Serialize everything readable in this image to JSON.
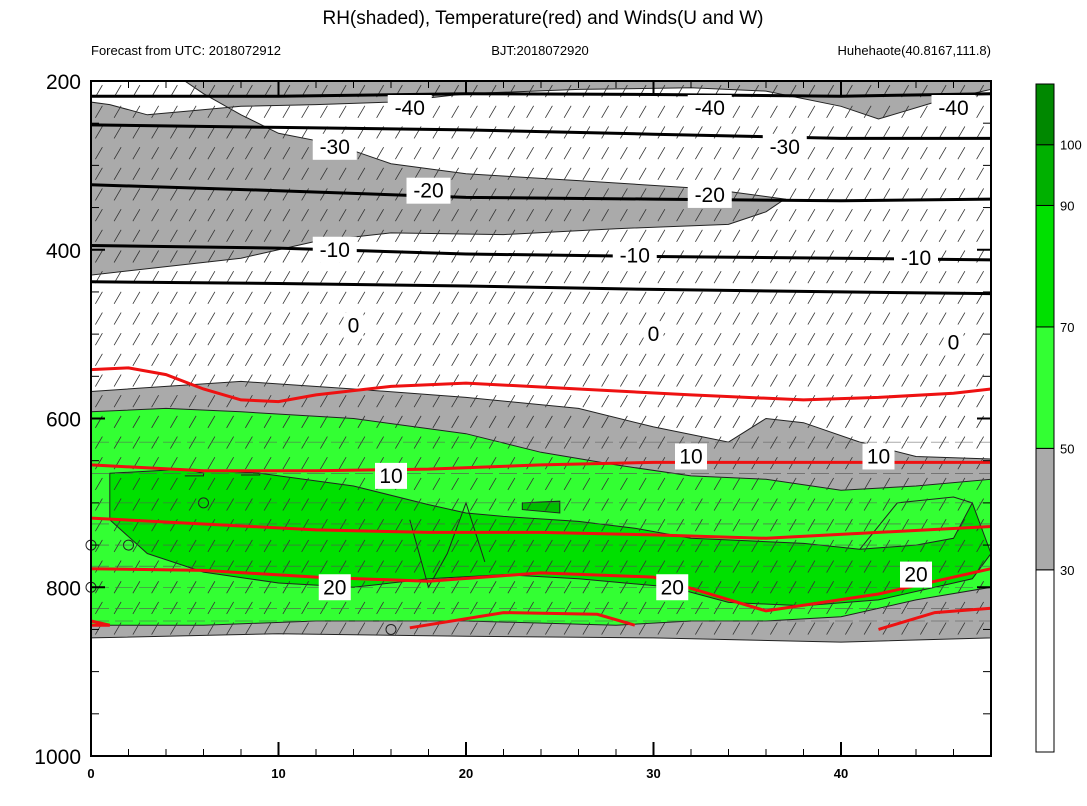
{
  "chart_data": {
    "type": "heatmap",
    "title": "RH(shaded), Temperature(red) and Winds(U and W)",
    "subtitle_left": "Forecast from UTC: 2018072912",
    "subtitle_center": "BJT:2018072920",
    "subtitle_right": "Huhehaote(40.8167,111.8)",
    "xlabel": "",
    "ylabel": "",
    "xlim": [
      0,
      48
    ],
    "ylim": [
      1000,
      200
    ],
    "x_ticks": [
      0,
      10,
      20,
      30,
      40
    ],
    "y_ticks": [
      200,
      400,
      600,
      800,
      1000
    ],
    "colorbar": {
      "labels": [
        "30",
        "50",
        "70",
        "90",
        "100"
      ],
      "levels": [
        0,
        30,
        50,
        70,
        90,
        100,
        110
      ],
      "colors": [
        "#ffffff",
        "#aaaaaa",
        "#33ff33",
        "#00e000",
        "#00b000",
        "#008800"
      ]
    },
    "rh_regions": [
      {
        "level": "gray",
        "color": "#aaaaaa",
        "points": [
          [
            0,
            225
          ],
          [
            0,
            430
          ],
          [
            8,
            410
          ],
          [
            12,
            390
          ],
          [
            16,
            380
          ],
          [
            22,
            382
          ],
          [
            28,
            375
          ],
          [
            34,
            370
          ],
          [
            36,
            355
          ],
          [
            37,
            340
          ],
          [
            33,
            328
          ],
          [
            26,
            318
          ],
          [
            20,
            310
          ],
          [
            16,
            298
          ],
          [
            13,
            275
          ],
          [
            10,
            262
          ],
          [
            8,
            240
          ],
          [
            6,
            215
          ],
          [
            5,
            200
          ],
          [
            48,
            200
          ],
          [
            48,
            210
          ],
          [
            45,
            225
          ],
          [
            42,
            245
          ],
          [
            40,
            230
          ],
          [
            36,
            212
          ],
          [
            32,
            208
          ],
          [
            26,
            210
          ],
          [
            20,
            215
          ],
          [
            16,
            225
          ],
          [
            12,
            228
          ],
          [
            8,
            230
          ],
          [
            5,
            236
          ],
          [
            3,
            240
          ],
          [
            1,
            228
          ]
        ]
      },
      {
        "level": "gray",
        "color": "#aaaaaa",
        "points": [
          [
            0,
            568
          ],
          [
            4,
            562
          ],
          [
            8,
            556
          ],
          [
            14,
            565
          ],
          [
            20,
            575
          ],
          [
            26,
            588
          ],
          [
            30,
            610
          ],
          [
            34,
            628
          ],
          [
            36,
            600
          ],
          [
            38,
            605
          ],
          [
            41,
            628
          ],
          [
            44,
            645
          ],
          [
            48,
            648
          ],
          [
            48,
            860
          ],
          [
            40,
            865
          ],
          [
            30,
            860
          ],
          [
            20,
            858
          ],
          [
            10,
            855
          ],
          [
            0,
            860
          ]
        ]
      },
      {
        "level": "light-green",
        "color": "#33ff33",
        "points": [
          [
            0,
            592
          ],
          [
            4,
            588
          ],
          [
            8,
            592
          ],
          [
            14,
            600
          ],
          [
            20,
            618
          ],
          [
            24,
            640
          ],
          [
            28,
            655
          ],
          [
            32,
            668
          ],
          [
            36,
            672
          ],
          [
            40,
            685
          ],
          [
            44,
            680
          ],
          [
            48,
            672
          ],
          [
            48,
            800
          ],
          [
            44,
            815
          ],
          [
            40,
            835
          ],
          [
            36,
            840
          ],
          [
            32,
            840
          ],
          [
            28,
            845
          ],
          [
            20,
            840
          ],
          [
            12,
            840
          ],
          [
            6,
            845
          ],
          [
            0,
            845
          ]
        ]
      },
      {
        "level": "green",
        "color": "#00e000",
        "points": [
          [
            1,
            665
          ],
          [
            5,
            660
          ],
          [
            9,
            665
          ],
          [
            14,
            680
          ],
          [
            18,
            702
          ],
          [
            20,
            712
          ],
          [
            22,
            716
          ],
          [
            26,
            722
          ],
          [
            29,
            730
          ],
          [
            32,
            742
          ],
          [
            35,
            745
          ],
          [
            38,
            748
          ],
          [
            41,
            755
          ],
          [
            44,
            750
          ],
          [
            46,
            742
          ],
          [
            47,
            700
          ],
          [
            48,
            760
          ],
          [
            47,
            790
          ],
          [
            45,
            800
          ],
          [
            42,
            815
          ],
          [
            38,
            822
          ],
          [
            34,
            818
          ],
          [
            31,
            800
          ],
          [
            26,
            790
          ],
          [
            22,
            785
          ],
          [
            18,
            790
          ],
          [
            14,
            800
          ],
          [
            10,
            795
          ],
          [
            6,
            782
          ],
          [
            3,
            760
          ],
          [
            1,
            720
          ]
        ]
      },
      {
        "level": "deep-green",
        "color": "#00c000",
        "points": [
          [
            23,
            700
          ],
          [
            25,
            698
          ],
          [
            25,
            712
          ],
          [
            23,
            708
          ]
        ]
      }
    ],
    "rh_lines": [
      {
        "points": [
          [
            17,
            720
          ],
          [
            18,
            800
          ],
          [
            19,
            760
          ],
          [
            20,
            700
          ],
          [
            21,
            770
          ]
        ]
      },
      {
        "points": [
          [
            41,
            755
          ],
          [
            43,
            700
          ],
          [
            46,
            693
          ],
          [
            47,
            700
          ]
        ]
      },
      {
        "points": [
          [
            5,
            660
          ],
          [
            6,
            665
          ],
          [
            6,
            668
          ],
          [
            5,
            668
          ]
        ]
      },
      {
        "points": [
          [
            8,
            663
          ],
          [
            9,
            665
          ],
          [
            9,
            667
          ],
          [
            8,
            667
          ]
        ]
      }
    ],
    "rh_circles": [
      [
        6,
        700
      ],
      [
        2,
        750
      ],
      [
        0,
        750
      ],
      [
        0,
        800
      ],
      [
        16,
        850
      ]
    ],
    "temperature_red": [
      {
        "label": "",
        "points": [
          [
            0,
            542
          ],
          [
            2,
            540
          ],
          [
            4,
            548
          ],
          [
            6,
            565
          ],
          [
            8,
            578
          ],
          [
            10,
            580
          ],
          [
            12,
            572
          ],
          [
            16,
            562
          ],
          [
            20,
            558
          ],
          [
            26,
            565
          ],
          [
            32,
            572
          ],
          [
            38,
            578
          ],
          [
            42,
            575
          ],
          [
            46,
            570
          ],
          [
            48,
            565
          ]
        ]
      },
      {
        "label": "10",
        "points": [
          [
            0,
            655
          ],
          [
            6,
            662
          ],
          [
            12,
            662
          ],
          [
            18,
            660
          ],
          [
            24,
            655
          ],
          [
            30,
            652
          ],
          [
            36,
            652
          ],
          [
            42,
            652
          ],
          [
            48,
            652
          ]
        ],
        "label_at": [
          16,
          668
        ],
        "label2": "10",
        "label2_at": [
          32,
          645
        ],
        "label3": "10",
        "label3_at": [
          42,
          645
        ]
      },
      {
        "label": "",
        "points": [
          [
            0,
            718
          ],
          [
            6,
            725
          ],
          [
            12,
            732
          ],
          [
            18,
            735
          ],
          [
            24,
            735
          ],
          [
            30,
            738
          ],
          [
            36,
            742
          ],
          [
            42,
            735
          ],
          [
            48,
            728
          ]
        ]
      },
      {
        "label": "20",
        "points": [
          [
            0,
            778
          ],
          [
            6,
            780
          ],
          [
            12,
            788
          ],
          [
            18,
            793
          ],
          [
            24,
            783
          ],
          [
            30,
            788
          ],
          [
            36,
            828
          ],
          [
            42,
            808
          ],
          [
            48,
            778
          ]
        ],
        "label_at": [
          13,
          800
        ],
        "label2": "20",
        "label2_at": [
          31,
          800
        ],
        "label3": "20",
        "label3_at": [
          44,
          785
        ]
      },
      {
        "label": "",
        "points": [
          [
            0,
            840
          ],
          [
            1,
            845
          ],
          [
            0,
            845
          ]
        ]
      },
      {
        "label": "",
        "points": [
          [
            17,
            848
          ],
          [
            22,
            830
          ],
          [
            27,
            832
          ],
          [
            29,
            845
          ]
        ]
      },
      {
        "label": "",
        "points": [
          [
            42,
            850
          ],
          [
            45,
            830
          ],
          [
            48,
            825
          ]
        ]
      }
    ],
    "temperature_black": [
      {
        "label": "-40",
        "points": [
          [
            0,
            218
          ],
          [
            10,
            218
          ],
          [
            20,
            215
          ],
          [
            30,
            216
          ],
          [
            40,
            218
          ],
          [
            48,
            215
          ]
        ],
        "labels_at": [
          [
            17,
            232
          ],
          [
            33,
            232
          ],
          [
            46,
            232
          ]
        ]
      },
      {
        "label": "-30",
        "points": [
          [
            0,
            252
          ],
          [
            10,
            255
          ],
          [
            20,
            258
          ],
          [
            30,
            263
          ],
          [
            40,
            268
          ],
          [
            48,
            268
          ]
        ],
        "labels_at": [
          [
            13,
            278
          ],
          [
            37,
            278
          ]
        ]
      },
      {
        "label": "-20",
        "points": [
          [
            0,
            323
          ],
          [
            10,
            330
          ],
          [
            20,
            338
          ],
          [
            30,
            340
          ],
          [
            40,
            342
          ],
          [
            48,
            340
          ]
        ],
        "labels_at": [
          [
            18,
            330
          ],
          [
            33,
            335
          ]
        ]
      },
      {
        "label": "-10",
        "points": [
          [
            0,
            395
          ],
          [
            10,
            398
          ],
          [
            20,
            405
          ],
          [
            30,
            408
          ],
          [
            40,
            410
          ],
          [
            48,
            412
          ]
        ],
        "labels_at": [
          [
            13,
            400
          ],
          [
            29,
            407
          ],
          [
            44,
            410
          ]
        ]
      },
      {
        "label": "0",
        "points": [
          [
            0,
            438
          ],
          [
            10,
            440
          ],
          [
            20,
            443
          ],
          [
            30,
            447
          ],
          [
            40,
            450
          ],
          [
            48,
            452
          ]
        ],
        "labels_at": [
          [
            14,
            490
          ],
          [
            30,
            500
          ],
          [
            46,
            510
          ]
        ]
      }
    ]
  }
}
